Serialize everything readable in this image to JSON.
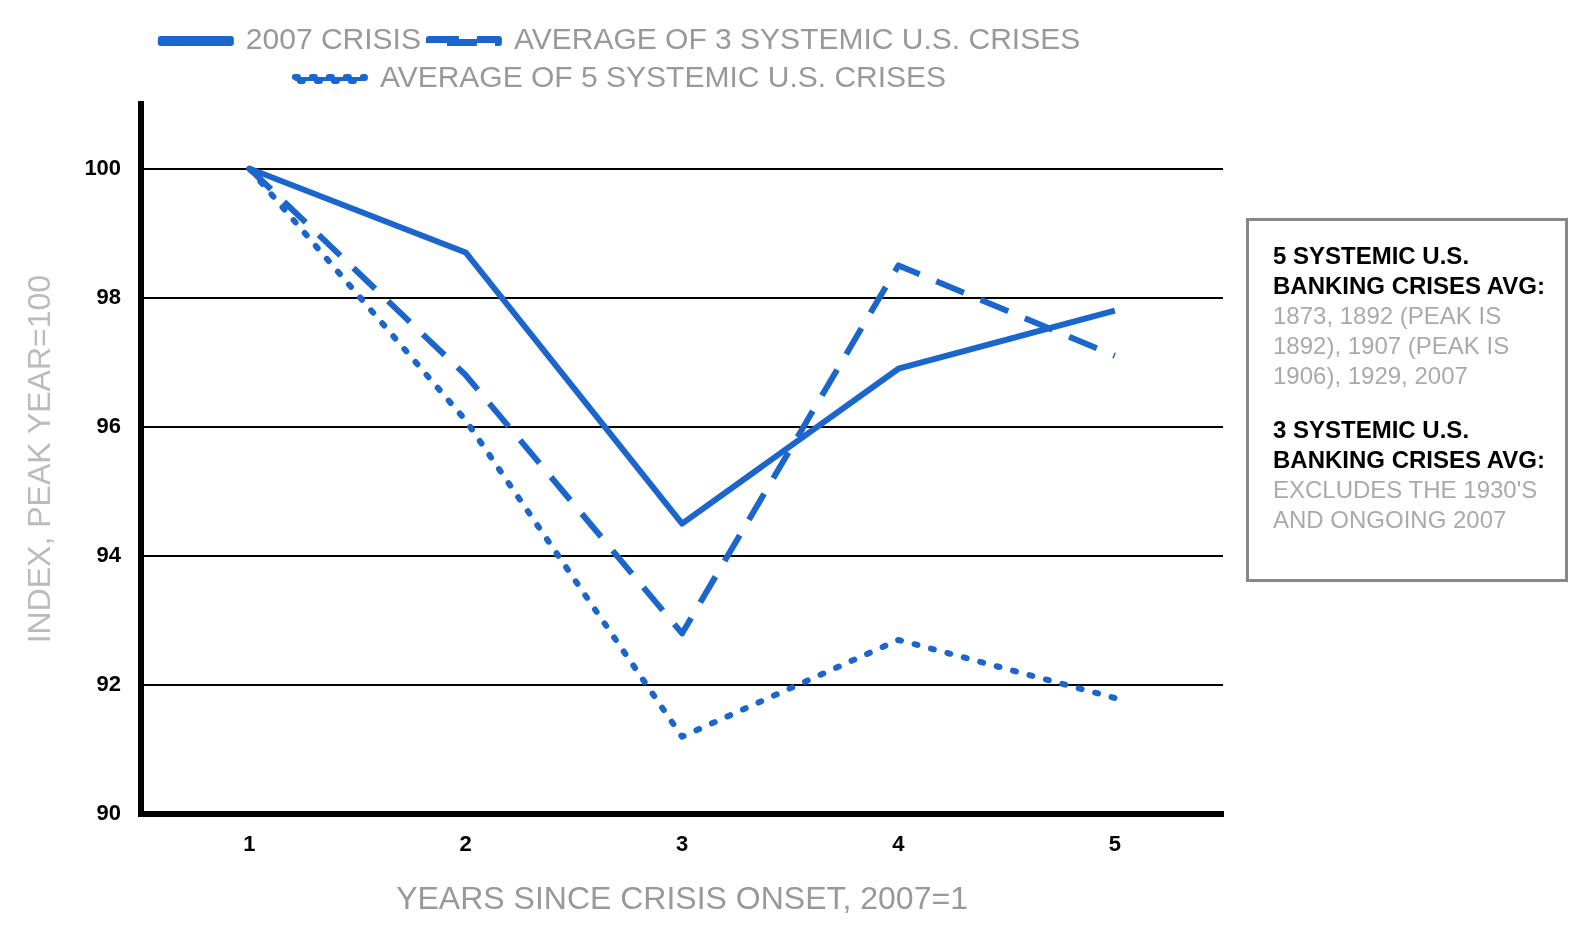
{
  "chart_data": {
    "type": "line",
    "xlabel": "YEARS SINCE CRISIS ONSET, 2007=1",
    "ylabel": "INDEX, PEAK YEAR=100",
    "categories": [
      "1",
      "2",
      "3",
      "4",
      "5"
    ],
    "series": [
      {
        "name": "2007 CRISIS",
        "color": "#1a66cc",
        "line_style": "solid",
        "values": [
          100,
          98.7,
          94.5,
          96.9,
          97.8
        ]
      },
      {
        "name": "AVERAGE OF 3 SYSTEMIC U.S. CRISES",
        "color": "#1a66cc",
        "line_style": "dashed",
        "values": [
          100,
          96.8,
          92.8,
          98.5,
          97.1
        ]
      },
      {
        "name": "AVERAGE OF 5 SYSTEMIC U.S. CRISES",
        "color": "#1a66cc",
        "line_style": "dotted",
        "values": [
          100,
          96.1,
          91.2,
          92.7,
          91.8
        ]
      }
    ],
    "ylim": [
      90,
      101
    ],
    "yticks": [
      90,
      92,
      94,
      96,
      98,
      100
    ],
    "grid": "y",
    "legend": "top",
    "marker": "none",
    "annotations": [
      "5 SYSTEMIC U.S. BANKING CRISES AVG:",
      "1873, 1892 (PEAK IS 1892), 1907 (PEAK IS 1906), 1929, 2007",
      "3 SYSTEMIC U.S. BANKING CRISES AVG:",
      "EXCLUDES THE 1930'S AND ONGOING 2007"
    ]
  }
}
